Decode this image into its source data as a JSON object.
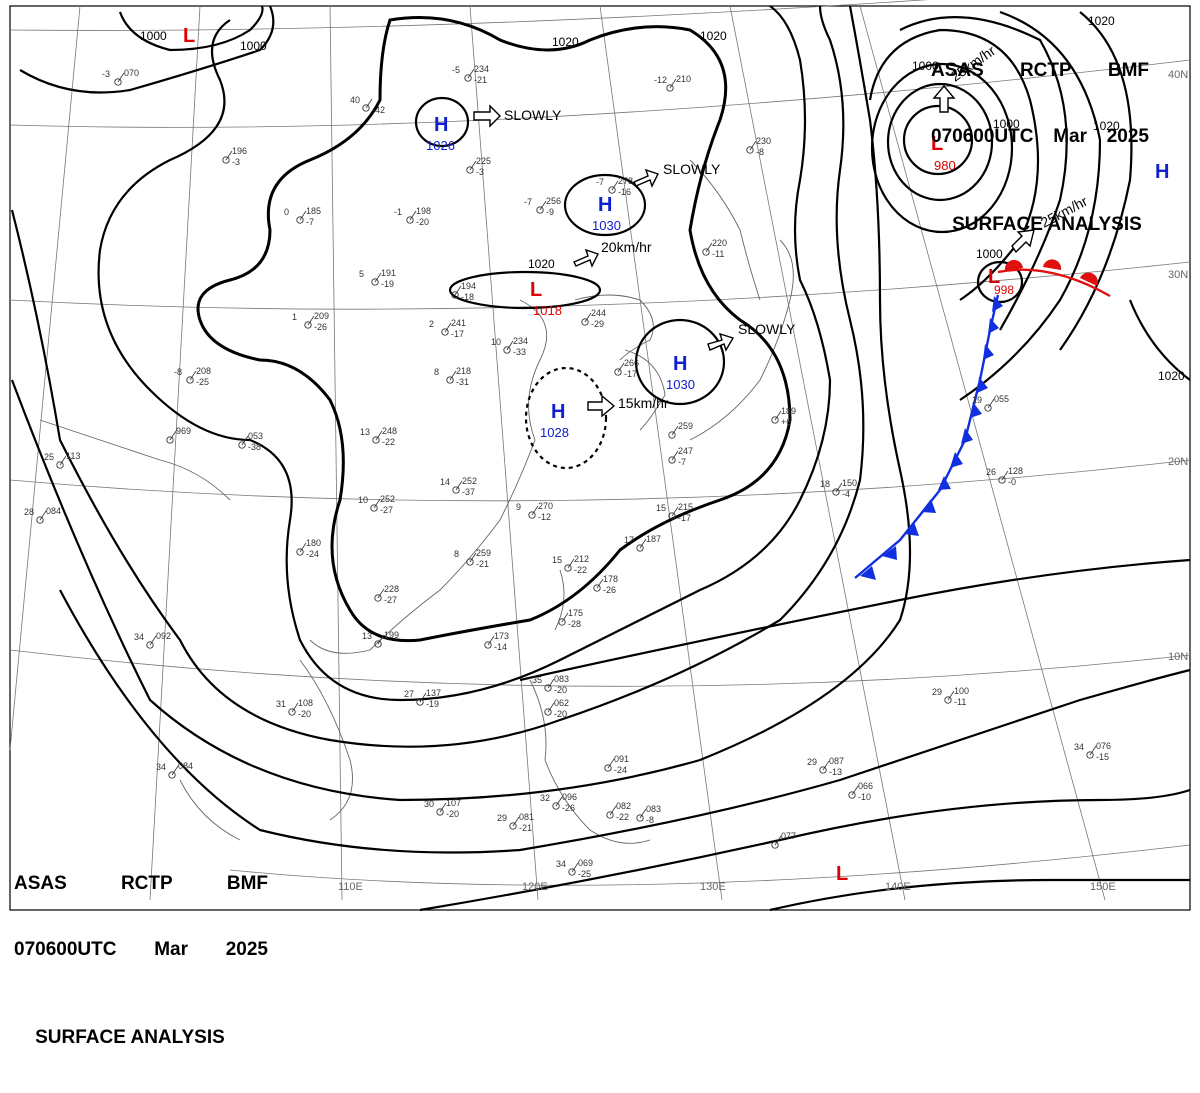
{
  "header": {
    "agency": "ASAS",
    "station": "RCTP",
    "office": "BMF",
    "time": "070600UTC",
    "month": "Mar",
    "year": "2025",
    "title": "SURFACE ANALYSIS"
  },
  "lon_labels": [
    "110E",
    "120E",
    "130E",
    "140E",
    "150E"
  ],
  "lat_labels": [
    "40N",
    "30N",
    "20N",
    "10N"
  ],
  "isobar_labels": [
    "1000",
    "1000",
    "1020",
    "1020",
    "1020",
    "1000",
    "1000",
    "1020",
    "1020",
    "1000",
    "1020"
  ],
  "systems": {
    "low_nw": {
      "letter": "L"
    },
    "high_mongolia": {
      "letter": "H",
      "pressure": "1026"
    },
    "high_north_china": {
      "letter": "H",
      "pressure": "1030"
    },
    "low_central": {
      "letter": "L",
      "pressure": "1018"
    },
    "high_korea": {
      "letter": "H",
      "pressure": "1030"
    },
    "high_east_china": {
      "letter": "H",
      "pressure": "1028"
    },
    "low_deep": {
      "letter": "L",
      "pressure": "980"
    },
    "low_frontal": {
      "letter": "L",
      "pressure": "998"
    },
    "high_east": {
      "letter": "H"
    },
    "low_south": {
      "letter": "L"
    }
  },
  "motions": {
    "m1": "SLOWLY",
    "m2": "SLOWLY",
    "m3": "20km/hr",
    "m4": "SLOWLY",
    "m5": "15km/hr",
    "m6": "25km/hr",
    "m7": "25km/hr"
  },
  "stations": [
    {
      "p": "234",
      "t": "-5",
      "d": "-21"
    },
    {
      "p": "225",
      "t": "",
      "d": "-3"
    },
    {
      "p": "278",
      "t": "-7",
      "d": "-16"
    },
    {
      "p": "256",
      "t": "-7",
      "d": "-9"
    },
    {
      "p": "198",
      "t": "-1",
      "d": "-20"
    },
    {
      "p": "185",
      "t": "0",
      "d": "-7"
    },
    {
      "p": "191",
      "t": "5",
      "d": "-19"
    },
    {
      "p": "194",
      "t": "",
      "d": "-18"
    },
    {
      "p": "209",
      "t": "1",
      "d": "-26"
    },
    {
      "p": "241",
      "t": "2",
      "d": "-17"
    },
    {
      "p": "234",
      "t": "10",
      "d": "-33"
    },
    {
      "p": "244",
      "t": "",
      "d": "-29"
    },
    {
      "p": "218",
      "t": "8",
      "d": "-31"
    },
    {
      "p": "208",
      "t": "-8",
      "d": "-25"
    },
    {
      "p": "969",
      "t": "",
      "d": ""
    },
    {
      "p": "053",
      "t": "",
      "d": "-38"
    },
    {
      "p": "113",
      "t": "25",
      "d": ""
    },
    {
      "p": "248",
      "t": "13",
      "d": "-22"
    },
    {
      "p": "252",
      "t": "14",
      "d": "-37"
    },
    {
      "p": "252",
      "t": "10",
      "d": "-27"
    },
    {
      "p": "270",
      "t": "9",
      "d": "-12"
    },
    {
      "p": "084",
      "t": "28",
      "d": ""
    },
    {
      "p": "180",
      "t": "",
      "d": "-24"
    },
    {
      "p": "259",
      "t": "8",
      "d": "-21"
    },
    {
      "p": "212",
      "t": "15",
      "d": "-22"
    },
    {
      "p": "178",
      "t": "",
      "d": "-26"
    },
    {
      "p": "175",
      "t": "",
      "d": "-28"
    },
    {
      "p": "173",
      "t": "",
      "d": "-14"
    },
    {
      "p": "199",
      "t": "13",
      "d": ""
    },
    {
      "p": "228",
      "t": "",
      "d": "-27"
    },
    {
      "p": "092",
      "t": "34",
      "d": ""
    },
    {
      "p": "108",
      "t": "31",
      "d": "-20"
    },
    {
      "p": "137",
      "t": "27",
      "d": "-19"
    },
    {
      "p": "084",
      "t": "34",
      "d": ""
    },
    {
      "p": "107",
      "t": "30",
      "d": "-20"
    },
    {
      "p": "083",
      "t": "35",
      "d": "-20"
    },
    {
      "p": "062",
      "t": "",
      "d": "-20"
    },
    {
      "p": "096",
      "t": "32",
      "d": "-26"
    },
    {
      "p": "081",
      "t": "29",
      "d": "-21"
    },
    {
      "p": "091",
      "t": "",
      "d": "-24"
    },
    {
      "p": "082",
      "t": "",
      "d": "-22"
    },
    {
      "p": "083",
      "t": "",
      "d": "-8"
    },
    {
      "p": "069",
      "t": "34",
      "d": "-25"
    },
    {
      "p": "215",
      "t": "15",
      "d": "-17"
    },
    {
      "p": "187",
      "t": "17",
      "d": ""
    },
    {
      "p": "259",
      "t": "",
      "d": ""
    },
    {
      "p": "247",
      "t": "",
      "d": "-7"
    },
    {
      "p": "266",
      "t": "",
      "d": "-17"
    },
    {
      "p": "189",
      "t": "",
      "d": "+6"
    },
    {
      "p": "150",
      "t": "18",
      "d": "-4"
    },
    {
      "p": "128",
      "t": "26",
      "d": "-0"
    },
    {
      "p": "055",
      "t": "19",
      "d": ""
    },
    {
      "p": "100",
      "t": "29",
      "d": "-11"
    },
    {
      "p": "087",
      "t": "29",
      "d": "-13"
    },
    {
      "p": "066",
      "t": "",
      "d": "-10"
    },
    {
      "p": "076",
      "t": "34",
      "d": "-15"
    },
    {
      "p": "077",
      "t": "",
      "d": ""
    },
    {
      "p": "210",
      "t": "-12",
      "d": ""
    },
    {
      "p": "230",
      "t": "",
      "d": "-8"
    },
    {
      "p": "220",
      "t": "",
      "d": "-11"
    },
    {
      "p": "070",
      "t": "-3",
      "d": ""
    },
    {
      "p": "",
      "t": "40",
      "d": "-42"
    },
    {
      "p": "196",
      "t": "",
      "d": "-3"
    }
  ]
}
